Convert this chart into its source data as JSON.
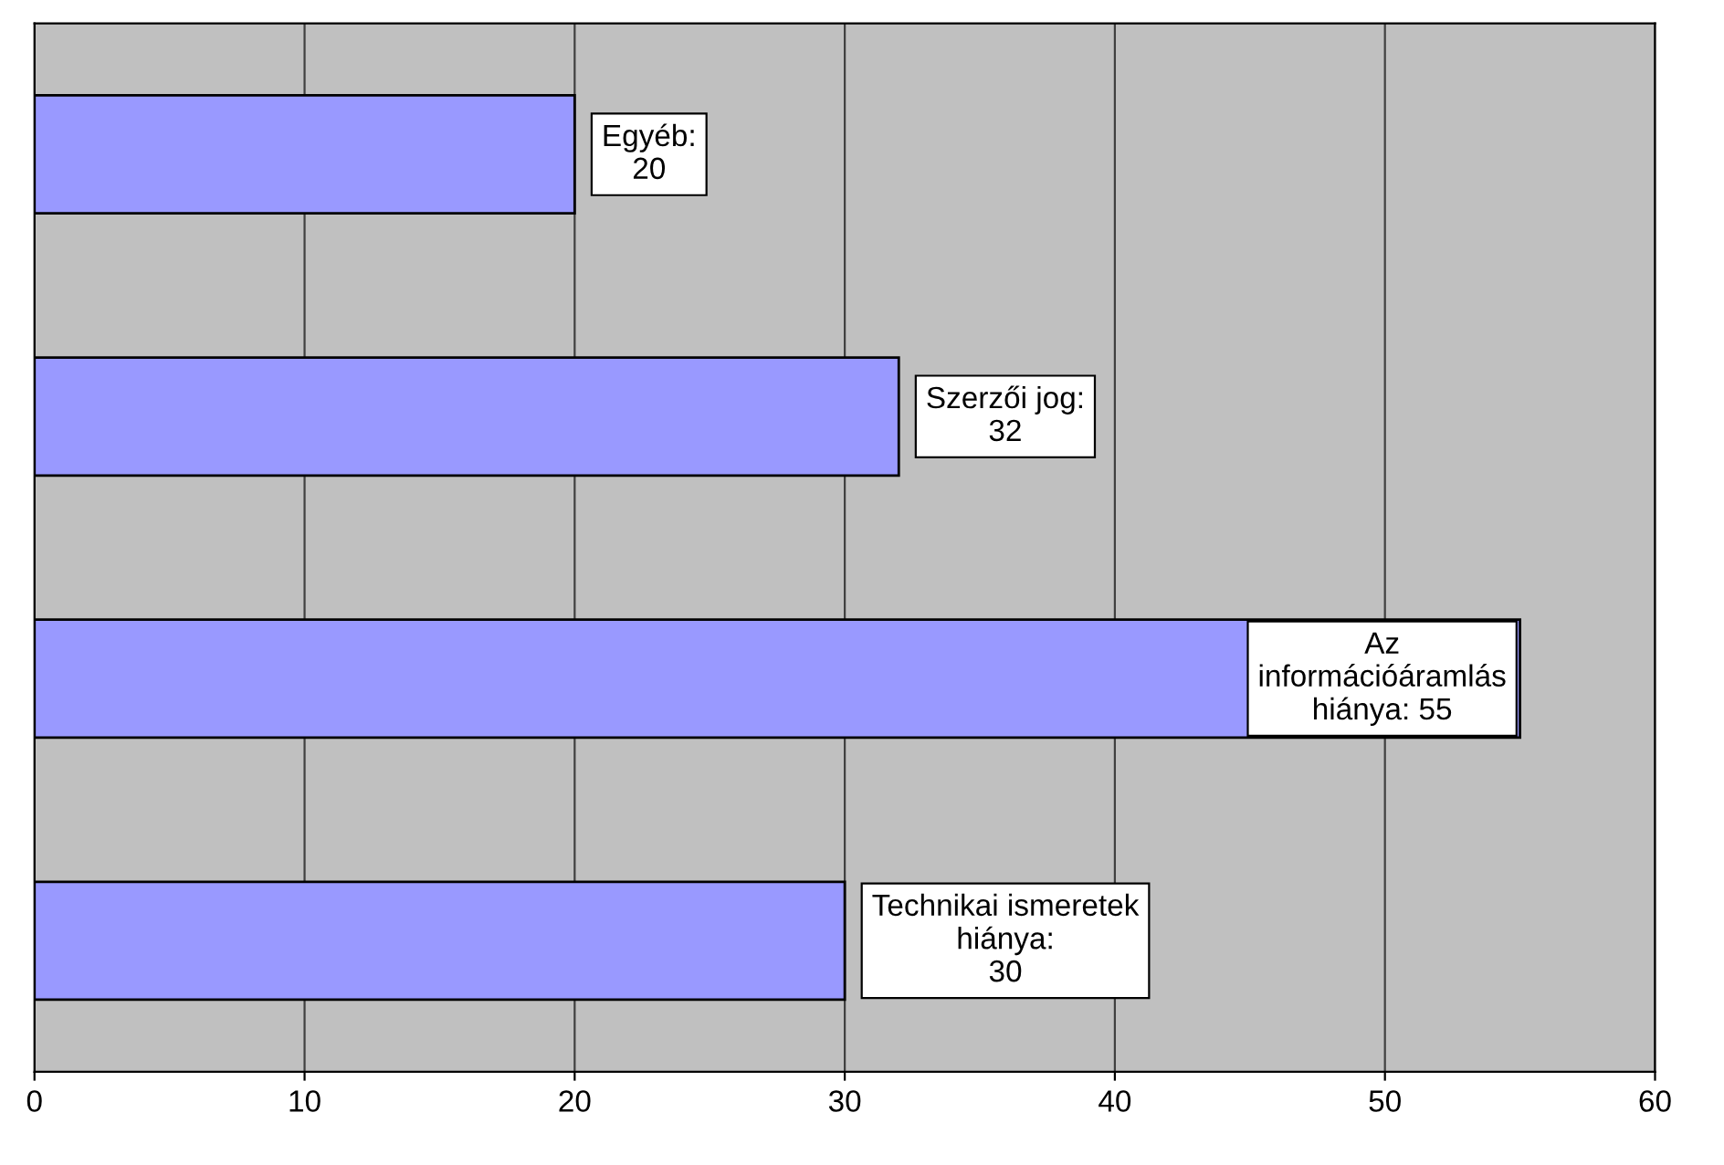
{
  "chart_data": {
    "type": "bar",
    "orientation": "horizontal",
    "categories": [
      null,
      null,
      null,
      null
    ],
    "values": [
      20,
      32,
      55,
      30
    ],
    "value_labels": [
      "Egyéb:\n20",
      "Szerzői jog:\n32",
      "Az\ninformációáramlás\nhiánya: 55",
      "Technikai ismeretek\nhiánya:\n30"
    ],
    "color": "#9999ff",
    "xlim": [
      0,
      60
    ],
    "xticks": [
      0,
      10,
      20,
      30,
      40,
      50,
      60
    ],
    "grid": "x"
  }
}
